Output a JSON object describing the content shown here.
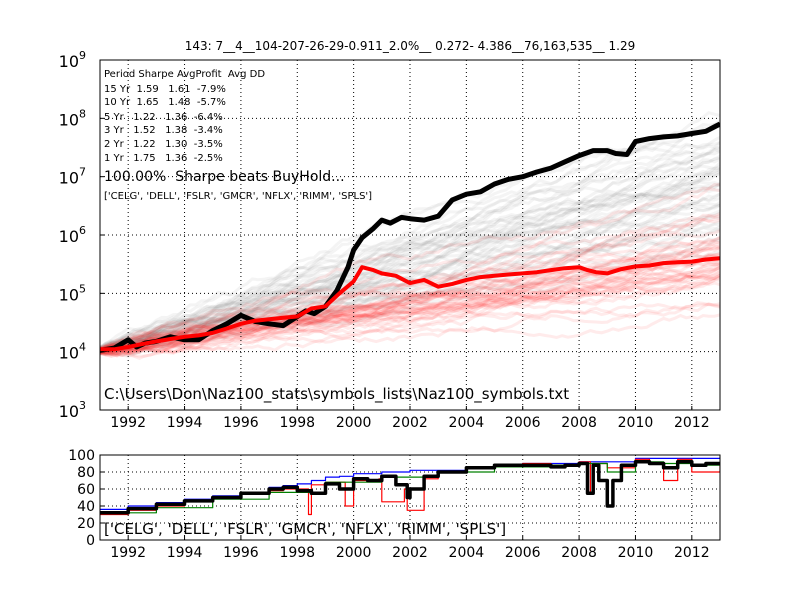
{
  "chart_data": [
    {
      "type": "line",
      "title": "143:  7__4__104-207-26-29-0.911_2.0%__ 0.272- 4.386__76,163,535__ 1.29",
      "yscale": "log",
      "xlim": [
        1991,
        2013
      ],
      "ylim": [
        1000,
        1000000000
      ],
      "grid": true,
      "x_ticks": [
        "1992",
        "1994",
        "1996",
        "1998",
        "2000",
        "2002",
        "2004",
        "2006",
        "2008",
        "2010",
        "2012"
      ],
      "y_ticks": [
        {
          "value": 1000,
          "base": "10",
          "exp": "3"
        },
        {
          "value": 10000,
          "base": "10",
          "exp": "4"
        },
        {
          "value": 100000,
          "base": "10",
          "exp": "5"
        },
        {
          "value": 1000000,
          "base": "10",
          "exp": "6"
        },
        {
          "value": 10000000,
          "base": "10",
          "exp": "7"
        },
        {
          "value": 100000000,
          "base": "10",
          "exp": "8"
        },
        {
          "value": 1000000000,
          "base": "10",
          "exp": "9"
        }
      ],
      "stats_table": [
        "Period Sharpe AvgProfit  Avg DD",
        "15 Yr  1.59   1.61  -7.9%",
        "10 Yr  1.65   1.48  -5.7%",
        "5 Yr   1.22   1.36  -6.4%",
        "3 Yr   1.52   1.38  -3.4%",
        "2 Yr   1.22   1.30  -3.5%",
        "1 Yr   1.75   1.36  -2.5%"
      ],
      "annotation_sharpe": "100.00%  Sharpe beats BuyHold...",
      "annotation_symbols": "['CELG', 'DELL', 'FSLR', 'GMCR', 'NFLX', 'RIMM', 'SPLS']",
      "annotation_path": "C:\\Users\\Don\\Naz100_stats\\symbols_lists\\Naz100_symbols.txt",
      "series": [
        {
          "color": "#000000",
          "x": [
            1991.0,
            1991.5,
            1992.0,
            1992.3,
            1992.6,
            1993.0,
            1993.5,
            1994.0,
            1994.5,
            1995.0,
            1995.5,
            1996.0,
            1996.5,
            1997.0,
            1997.5,
            1998.0,
            1998.3,
            1998.6,
            1999.0,
            1999.4,
            1999.8,
            2000.0,
            2000.3,
            2000.7,
            2001.0,
            2001.3,
            2001.7,
            2002.0,
            2002.5,
            2003.0,
            2003.5,
            2004.0,
            2004.5,
            2005.0,
            2005.5,
            2006.0,
            2006.5,
            2007.0,
            2007.5,
            2008.0,
            2008.5,
            2009.0,
            2009.3,
            2009.7,
            2010.0,
            2010.5,
            2011.0,
            2011.5,
            2012.0,
            2012.5,
            2013.0
          ],
          "values": [
            10500,
            11500,
            16000,
            12000,
            14000,
            15000,
            18000,
            16000,
            16000,
            23000,
            30000,
            42000,
            33000,
            30000,
            28000,
            40000,
            50000,
            45000,
            60000,
            110000,
            280000,
            550000,
            900000,
            1300000,
            1800000,
            1600000,
            2000000,
            1900000,
            1800000,
            2100000,
            4000000,
            5000000,
            5500000,
            7500000,
            9000000,
            10000000,
            12000000,
            14000000,
            18000000,
            23000000,
            28000000,
            28000000,
            25000000,
            24000000,
            40000000,
            45000000,
            48000000,
            50000000,
            55000000,
            60000000,
            80000000
          ]
        },
        {
          "color": "#ff0000",
          "x": [
            1991.0,
            1991.5,
            1992.0,
            1992.5,
            1993.0,
            1993.5,
            1994.0,
            1994.5,
            1995.0,
            1995.5,
            1996.0,
            1996.5,
            1997.0,
            1997.5,
            1998.0,
            1998.5,
            1999.0,
            1999.5,
            2000.0,
            2000.3,
            2000.7,
            2001.0,
            2001.5,
            2002.0,
            2002.5,
            2003.0,
            2003.5,
            2004.0,
            2004.5,
            2005.0,
            2005.5,
            2006.0,
            2006.5,
            2007.0,
            2007.5,
            2008.0,
            2008.3,
            2008.6,
            2009.0,
            2009.5,
            2010.0,
            2010.5,
            2011.0,
            2011.5,
            2012.0,
            2012.5,
            2013.0
          ],
          "values": [
            11000,
            11000,
            12000,
            13500,
            15000,
            16500,
            18000,
            19000,
            21000,
            25000,
            30000,
            34000,
            36000,
            38000,
            40000,
            55000,
            60000,
            100000,
            160000,
            280000,
            250000,
            220000,
            200000,
            150000,
            170000,
            130000,
            145000,
            170000,
            190000,
            200000,
            210000,
            220000,
            230000,
            250000,
            270000,
            280000,
            250000,
            230000,
            220000,
            260000,
            290000,
            300000,
            330000,
            340000,
            350000,
            380000,
            400000
          ]
        }
      ]
    },
    {
      "type": "line",
      "xlim": [
        1991,
        2013
      ],
      "ylim": [
        0,
        100
      ],
      "grid": true,
      "x_ticks": [
        "1992",
        "1994",
        "1996",
        "1998",
        "2000",
        "2002",
        "2004",
        "2006",
        "2008",
        "2010",
        "2012"
      ],
      "y_ticks": [
        "0",
        "20",
        "40",
        "60",
        "80",
        "100"
      ],
      "annotation_symbols": "['CELG', 'DELL', 'FSLR', 'GMCR', 'NFLX', 'RIMM', 'SPLS']",
      "series": [
        {
          "color": "#0000ff",
          "x": [
            1991.0,
            1992.0,
            1993.0,
            1994.0,
            1995.0,
            1996.0,
            1997.0,
            1997.5,
            1998.0,
            1998.5,
            1999.0,
            1999.5,
            2000.0,
            2001.0,
            2002.0,
            2003.0,
            2004.0,
            2005.0,
            2006.0,
            2007.0,
            2008.0,
            2009.0,
            2010.0,
            2011.0,
            2012.0,
            2013.0
          ],
          "values": [
            36,
            40,
            44,
            48,
            52,
            56,
            62,
            64,
            66,
            70,
            74,
            75,
            78,
            80,
            82,
            82,
            85,
            88,
            90,
            90,
            92,
            92,
            96,
            96,
            96,
            98
          ]
        },
        {
          "color": "#ff0000",
          "x": [
            1991.0,
            1992.0,
            1993.0,
            1994.0,
            1995.0,
            1996.0,
            1997.0,
            1997.5,
            1998.0,
            1998.4,
            1998.5,
            1999.0,
            1999.7,
            2000.0,
            2000.9,
            2001.0,
            2001.8,
            2001.9,
            2002.5,
            2003.0,
            2004.0,
            2005.0,
            2006.0,
            2007.0,
            2008.0,
            2008.4,
            2008.5,
            2009.0,
            2010.0,
            2010.5,
            2011.0,
            2011.5,
            2012.0,
            2013.0
          ],
          "values": [
            30,
            35,
            40,
            45,
            50,
            55,
            58,
            60,
            60,
            30,
            65,
            68,
            40,
            70,
            72,
            45,
            60,
            35,
            72,
            80,
            85,
            88,
            90,
            88,
            92,
            55,
            90,
            85,
            95,
            90,
            70,
            95,
            80,
            90
          ]
        },
        {
          "color": "#008000",
          "x": [
            1991.0,
            1993.0,
            1995.0,
            1997.0,
            1999.0,
            2001.0,
            2003.0,
            2005.0,
            2007.0,
            2008.0,
            2009.0,
            2010.0,
            2011.0,
            2012.0,
            2013.0
          ],
          "values": [
            32,
            38,
            48,
            56,
            68,
            74,
            80,
            86,
            88,
            90,
            80,
            92,
            90,
            88,
            92
          ]
        },
        {
          "color": "#000000",
          "x": [
            1991.0,
            1992.0,
            1993.0,
            1994.0,
            1995.0,
            1996.0,
            1997.0,
            1997.5,
            1998.0,
            1998.5,
            1999.0,
            1999.5,
            2000.0,
            2000.5,
            2001.0,
            2001.5,
            2001.9,
            2002.0,
            2002.5,
            2003.0,
            2004.0,
            2005.0,
            2006.0,
            2007.0,
            2007.5,
            2008.0,
            2008.3,
            2008.5,
            2008.7,
            2009.0,
            2009.2,
            2009.5,
            2010.0,
            2010.5,
            2011.0,
            2011.5,
            2012.0,
            2012.5,
            2013.0
          ],
          "values": [
            32,
            37,
            42,
            46,
            50,
            55,
            60,
            62,
            58,
            55,
            66,
            60,
            72,
            70,
            75,
            65,
            50,
            60,
            75,
            80,
            85,
            88,
            88,
            86,
            88,
            90,
            55,
            88,
            70,
            40,
            70,
            88,
            92,
            90,
            85,
            92,
            88,
            90,
            92
          ]
        }
      ]
    }
  ]
}
